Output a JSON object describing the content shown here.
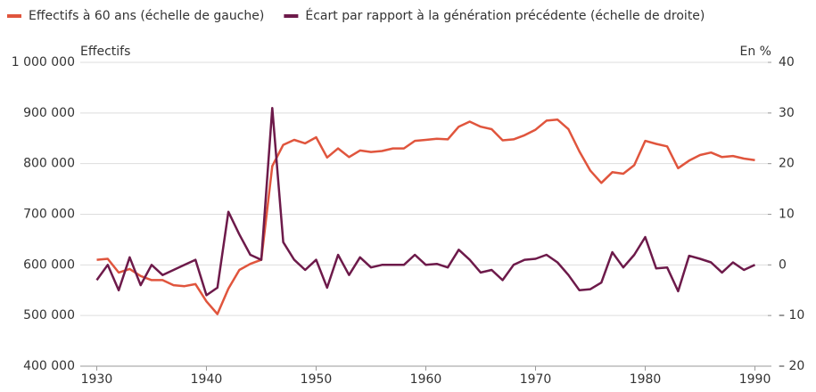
{
  "chart_data": {
    "type": "line",
    "y_label": "Effectifs",
    "y2_label": "En %",
    "x": [
      1930,
      1931,
      1932,
      1933,
      1934,
      1935,
      1936,
      1937,
      1938,
      1939,
      1940,
      1941,
      1942,
      1943,
      1944,
      1945,
      1946,
      1947,
      1948,
      1949,
      1950,
      1951,
      1952,
      1953,
      1954,
      1955,
      1956,
      1957,
      1958,
      1959,
      1960,
      1961,
      1962,
      1963,
      1964,
      1965,
      1966,
      1967,
      1968,
      1969,
      1970,
      1971,
      1972,
      1973,
      1974,
      1975,
      1976,
      1977,
      1978,
      1979,
      1980,
      1981,
      1982,
      1983,
      1984,
      1985,
      1986,
      1987,
      1988,
      1989,
      1990
    ],
    "series": [
      {
        "name": "Effectifs à 60 ans (échelle de gauche)",
        "color": "#e0553d",
        "values": [
          610000,
          612000,
          585000,
          592000,
          578000,
          570000,
          570000,
          560000,
          558000,
          562000,
          528000,
          503000,
          553000,
          590000,
          602000,
          610000,
          795000,
          837000,
          847000,
          840000,
          852000,
          812000,
          830000,
          813000,
          826000,
          823000,
          825000,
          830000,
          830000,
          845000,
          847000,
          849000,
          848000,
          873000,
          883000,
          873000,
          868000,
          846000,
          848000,
          856000,
          867000,
          885000,
          887000,
          868000,
          824000,
          786000,
          762000,
          783000,
          780000,
          797000,
          845000,
          839000,
          834000,
          791000,
          806000,
          817000,
          822000,
          813000,
          815000,
          810000,
          807000
        ]
      },
      {
        "name": "Écart par rapport à la génération précédente (échelle de droite)",
        "color": "#6d1a4a",
        "axis": "y2",
        "values": [
          -3,
          0,
          -5,
          1.5,
          -4,
          0,
          -2,
          -1,
          0,
          1,
          -6,
          -4.5,
          10.5,
          6,
          2,
          1,
          31,
          4.5,
          1,
          -1,
          1,
          -4.5,
          2,
          -2,
          1.5,
          -0.5,
          0,
          0,
          0,
          2,
          0,
          0.2,
          -0.5,
          3,
          1,
          -1.5,
          -1,
          -3,
          0,
          1,
          1.2,
          2,
          0.5,
          -2,
          -5,
          -4.8,
          -3.5,
          2.5,
          -0.5,
          2,
          5.5,
          -0.7,
          -0.5,
          -5.2,
          1.8,
          1.2,
          0.5,
          -1.5,
          0.5,
          -1,
          0
        ]
      }
    ],
    "xlim": [
      1928.5,
      1991.5
    ],
    "xticks": [
      1930,
      1940,
      1950,
      1960,
      1970,
      1980,
      1990
    ],
    "ylim": [
      400000,
      1000000
    ],
    "yticks": [
      {
        "value": 400000,
        "label": "400 000"
      },
      {
        "value": 500000,
        "label": "500 000"
      },
      {
        "value": 600000,
        "label": "600 000"
      },
      {
        "value": 700000,
        "label": "700 000"
      },
      {
        "value": 800000,
        "label": "800 000"
      },
      {
        "value": 900000,
        "label": "900 000"
      },
      {
        "value": 1000000,
        "label": "1 000 000"
      }
    ],
    "y2lim": [
      -20,
      40
    ],
    "y2ticks": [
      {
        "value": -20,
        "label": "– 20"
      },
      {
        "value": -10,
        "label": "– 10"
      },
      0,
      10,
      20,
      30,
      40
    ],
    "grid": true,
    "legend": "top"
  }
}
